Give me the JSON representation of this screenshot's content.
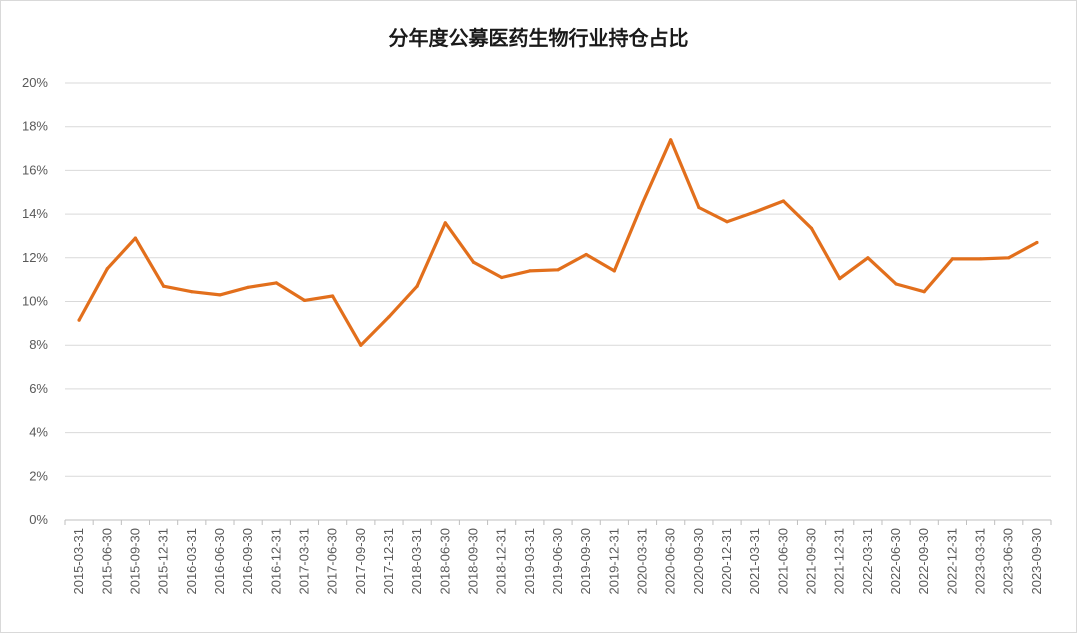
{
  "chart_data": {
    "type": "line",
    "title": "分年度公募医药生物行业持仓占比",
    "xlabel": "",
    "ylabel": "",
    "ylim": [
      0,
      20
    ],
    "y_ticks": [
      "0%",
      "2%",
      "4%",
      "6%",
      "8%",
      "10%",
      "12%",
      "14%",
      "16%",
      "18%",
      "20%"
    ],
    "grid": true,
    "legend": "none",
    "line_color": "#E26F1C",
    "categories": [
      "2015-03-31",
      "2015-06-30",
      "2015-09-30",
      "2015-12-31",
      "2016-03-31",
      "2016-06-30",
      "2016-09-30",
      "2016-12-31",
      "2017-03-31",
      "2017-06-30",
      "2017-09-30",
      "2017-12-31",
      "2018-03-31",
      "2018-06-30",
      "2018-09-30",
      "2018-12-31",
      "2019-03-31",
      "2019-06-30",
      "2019-09-30",
      "2019-12-31",
      "2020-03-31",
      "2020-06-30",
      "2020-09-30",
      "2020-12-31",
      "2021-03-31",
      "2021-06-30",
      "2021-09-30",
      "2021-12-31",
      "2022-03-31",
      "2022-06-30",
      "2022-09-30",
      "2022-12-31",
      "2023-03-31",
      "2023-06-30",
      "2023-09-30"
    ],
    "series": [
      {
        "values": [
          9.15,
          11.5,
          12.9,
          10.7,
          10.45,
          10.3,
          10.65,
          10.85,
          10.05,
          10.25,
          8.0,
          9.3,
          10.7,
          13.6,
          11.8,
          11.1,
          11.4,
          11.45,
          12.15,
          11.4,
          14.5,
          17.4,
          14.3,
          13.65,
          14.1,
          14.6,
          13.35,
          11.05,
          12.0,
          10.8,
          10.45,
          11.95,
          11.95,
          12.0,
          12.7
        ]
      }
    ]
  }
}
